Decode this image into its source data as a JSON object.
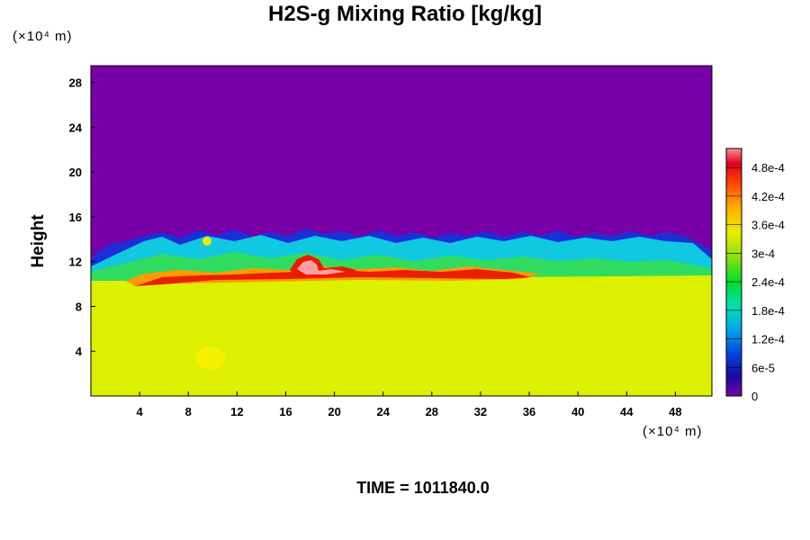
{
  "chart_data": {
    "type": "heatmap",
    "title": "H2S-g Mixing Ratio [kg/kg]",
    "ylabel": "Height",
    "x_unit": "(×10⁴ m)",
    "y_unit": "(×10⁴ m)",
    "footer": "TIME = 1011840.0",
    "x_ticks": [
      "4",
      "8",
      "12",
      "16",
      "20",
      "24",
      "28",
      "32",
      "36",
      "40",
      "44",
      "48"
    ],
    "y_ticks": [
      "4",
      "8",
      "12",
      "16",
      "20",
      "24",
      "28"
    ],
    "xlim": [
      0,
      51
    ],
    "ylim": [
      0,
      29.5
    ],
    "colorbar": {
      "ticks": [
        "0",
        "6e-5",
        "1.2e-4",
        "1.8e-4",
        "2.4e-4",
        "3e-4",
        "3.6e-4",
        "4.2e-4",
        "4.8e-4"
      ],
      "tick_values": [
        0,
        6e-05,
        0.00012,
        0.00018,
        0.00024,
        0.0003,
        0.00036,
        0.00042,
        0.00048
      ],
      "range": [
        0,
        0.00052
      ]
    },
    "description_layers": {
      "upper_value": 0,
      "lower_value": 0.00035,
      "interface_height_range": [
        10,
        15
      ],
      "max_value_near_x": 18,
      "max_value_height": 11.5
    }
  }
}
